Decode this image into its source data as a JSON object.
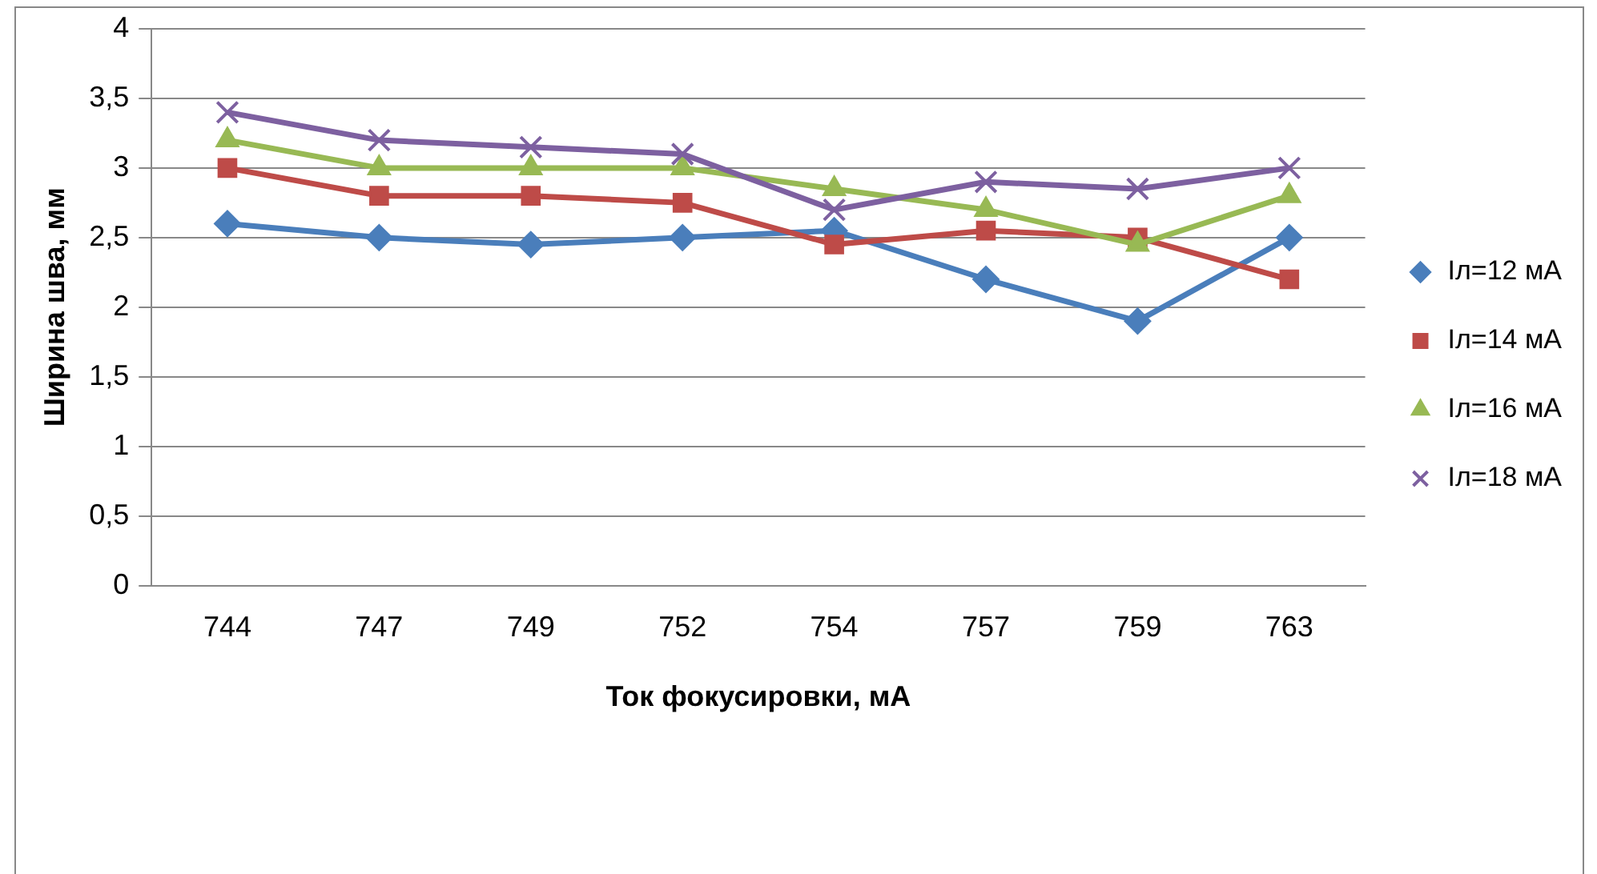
{
  "chart_data": {
    "type": "line",
    "xlabel": "Ток фокусировки, мА",
    "ylabel": "Ширина шва, мм",
    "categories": [
      "744",
      "747",
      "749",
      "752",
      "754",
      "757",
      "759",
      "763"
    ],
    "series": [
      {
        "name": "Iл=12 мА",
        "color": "#4a7ebb",
        "marker": "diamond",
        "values": [
          2.6,
          2.5,
          2.45,
          2.5,
          2.55,
          2.2,
          1.9,
          2.5
        ]
      },
      {
        "name": "Iл=14 мА",
        "color": "#be4b48",
        "marker": "square",
        "values": [
          3.0,
          2.8,
          2.8,
          2.75,
          2.45,
          2.55,
          2.5,
          2.2
        ]
      },
      {
        "name": "Iл=16 мА",
        "color": "#98b954",
        "marker": "triangle",
        "values": [
          3.2,
          3.0,
          3.0,
          3.0,
          2.85,
          2.7,
          2.45,
          2.8
        ]
      },
      {
        "name": "Iл=18 мА",
        "color": "#7d60a0",
        "marker": "cross",
        "values": [
          3.4,
          3.2,
          3.15,
          3.1,
          2.7,
          2.9,
          2.85,
          3.0
        ]
      }
    ],
    "ylim": [
      0,
      4
    ],
    "yticks": [
      {
        "value": 0,
        "label": "0"
      },
      {
        "value": 0.5,
        "label": "0,5"
      },
      {
        "value": 1,
        "label": "1"
      },
      {
        "value": 1.5,
        "label": "1,5"
      },
      {
        "value": 2,
        "label": "2"
      },
      {
        "value": 2.5,
        "label": "2,5"
      },
      {
        "value": 3,
        "label": "3"
      },
      {
        "value": 3.5,
        "label": "3,5"
      },
      {
        "value": 4,
        "label": "4"
      }
    ],
    "grid": "y",
    "legend": "right",
    "line_style": "solid"
  }
}
